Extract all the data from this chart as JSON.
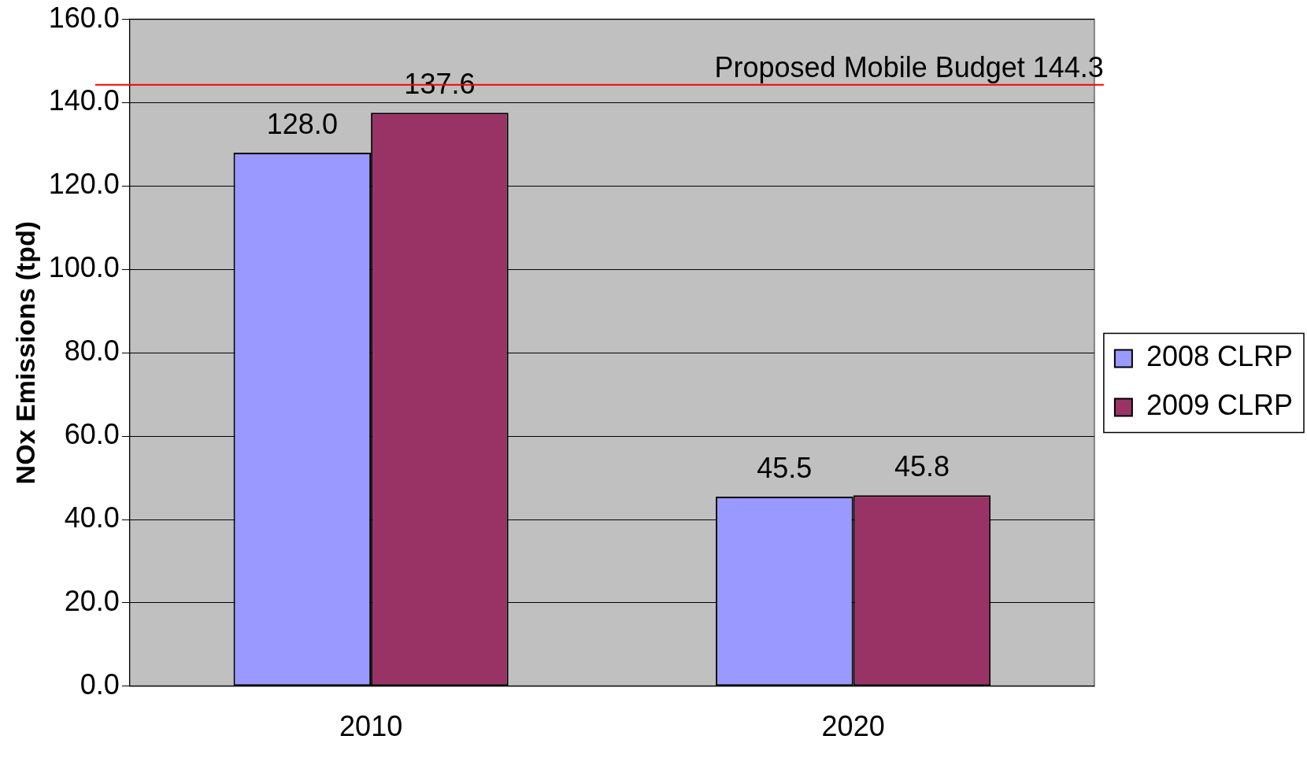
{
  "chart_data": {
    "type": "bar",
    "ylabel": "NOx Emissions (tpd)",
    "categories": [
      "2010",
      "2020"
    ],
    "series": [
      {
        "name": "2008 CLRP",
        "color": "#9999ff",
        "values": [
          128.0,
          45.5
        ],
        "value_labels": [
          "128.0",
          "45.5"
        ]
      },
      {
        "name": "2009 CLRP",
        "color": "#993366",
        "values": [
          137.6,
          45.8
        ],
        "value_labels": [
          "137.6",
          "45.8"
        ]
      }
    ],
    "ylim": [
      0,
      160
    ],
    "yticks": [
      {
        "value": 0,
        "label": "0.0"
      },
      {
        "value": 20,
        "label": "20.0"
      },
      {
        "value": 40,
        "label": "40.0"
      },
      {
        "value": 60,
        "label": "60.0"
      },
      {
        "value": 80,
        "label": "80.0"
      },
      {
        "value": 100,
        "label": "100.0"
      },
      {
        "value": 120,
        "label": "120.0"
      },
      {
        "value": 140,
        "label": "140.0"
      },
      {
        "value": 160,
        "label": "160.0"
      }
    ],
    "ref_lines": [
      {
        "axis": "y",
        "value": 144.3,
        "label": "Proposed Mobile Budget 144.3",
        "color": "#ff0000"
      }
    ],
    "grid": "y",
    "legend": "right"
  }
}
